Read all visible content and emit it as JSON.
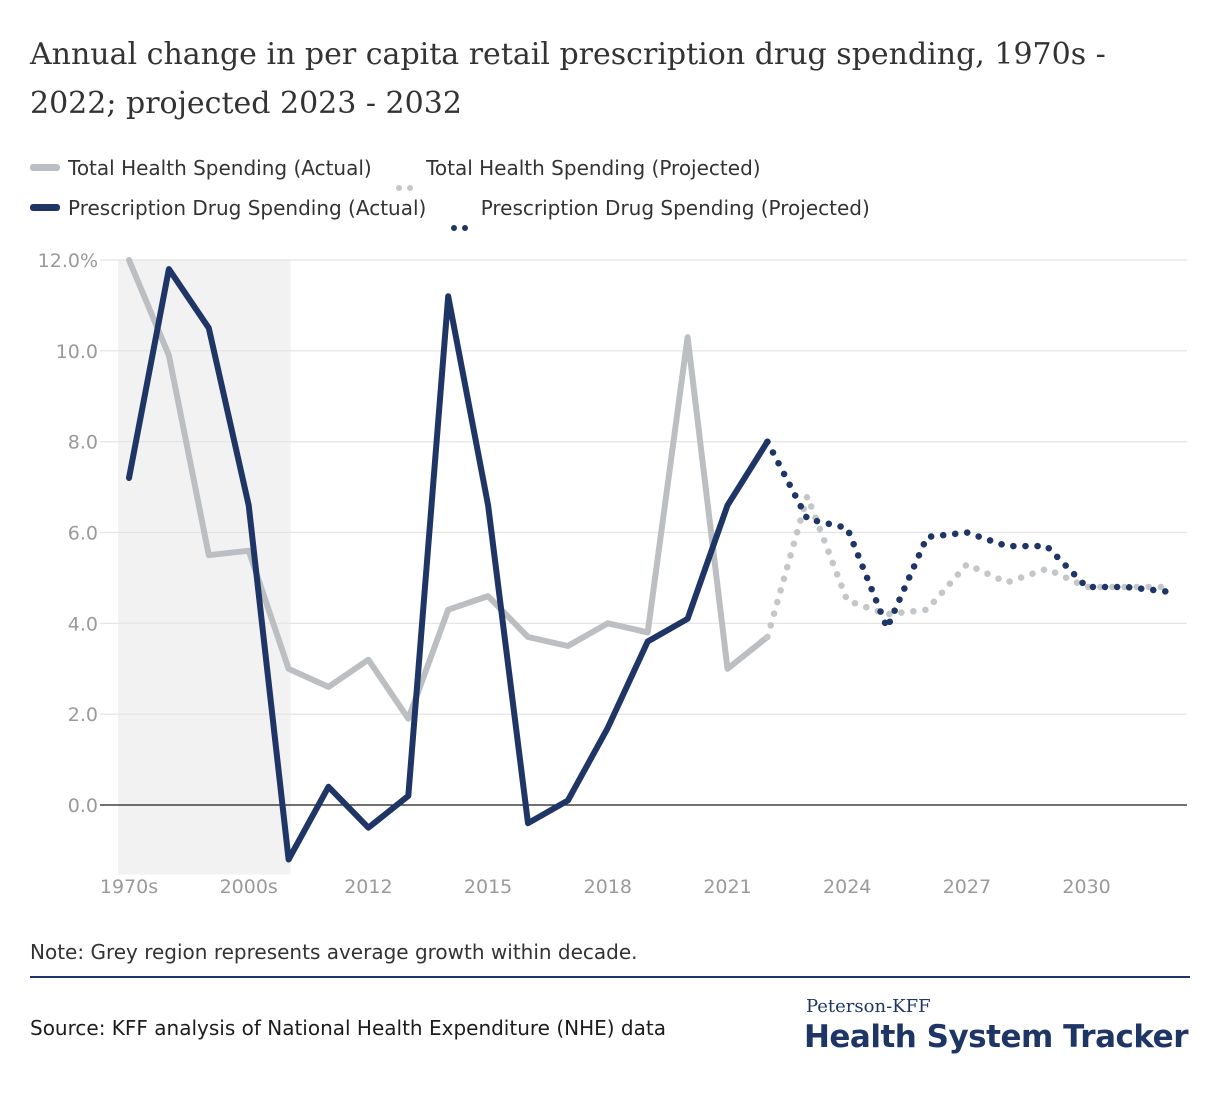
{
  "title": "Annual change in per capita retail prescription drug spending, 1970s - 2022; projected 2023 - 2032",
  "legend": [
    {
      "label": "Total Health Spending (Actual)",
      "color": "#bcbfc2",
      "style": "solid"
    },
    {
      "label": "Total Health Spending (Projected)",
      "color": "#c4c7ca",
      "style": "dotted"
    },
    {
      "label": "Prescription Drug Spending (Actual)",
      "color": "#1f3566",
      "style": "solid"
    },
    {
      "label": "Prescription Drug Spending (Projected)",
      "color": "#1f3566",
      "style": "dotted"
    }
  ],
  "note": "Note: Grey region represents average growth within decade.",
  "source": "Source: KFF analysis of National Health Expenditure (NHE) data",
  "brand": {
    "top": "Peterson-KFF",
    "main": "Health System Tracker"
  },
  "chart_data": {
    "type": "line",
    "title": "Annual change in per capita retail prescription drug spending, 1970s - 2022; projected 2023 - 2032",
    "x": [
      "1970s",
      "1980s",
      "1990s",
      "2000s",
      "2010",
      "2011",
      "2012",
      "2013",
      "2014",
      "2015",
      "2016",
      "2017",
      "2018",
      "2019",
      "2020",
      "2021",
      "2022",
      "2023",
      "2024",
      "2025",
      "2026",
      "2027",
      "2028",
      "2029",
      "2030",
      "2031",
      "2032"
    ],
    "x_tick_labels": [
      "1970s",
      "2000s",
      "2012",
      "2015",
      "2018",
      "2021",
      "2024",
      "2027",
      "2030"
    ],
    "y_ticks": [
      "12.0%",
      "10.0",
      "8.0",
      "6.0",
      "4.0",
      "2.0",
      "0.0"
    ],
    "ylim": [
      -1.2,
      12.0
    ],
    "shaded_region": {
      "from": "1970s",
      "to": "2000s",
      "meaning": "average growth within decade"
    },
    "series": [
      {
        "name": "Total Health Spending (Actual)",
        "color": "#bcbfc2",
        "style": "solid",
        "values": [
          12.0,
          9.9,
          5.5,
          5.6,
          3.0,
          2.6,
          3.2,
          1.9,
          4.3,
          4.6,
          3.7,
          3.5,
          4.0,
          3.8,
          10.3,
          3.0,
          3.7,
          null,
          null,
          null,
          null,
          null,
          null,
          null,
          null,
          null,
          null
        ]
      },
      {
        "name": "Total Health Spending (Projected)",
        "color": "#c4c7ca",
        "style": "dotted",
        "values": [
          null,
          null,
          null,
          null,
          null,
          null,
          null,
          null,
          null,
          null,
          null,
          null,
          null,
          null,
          null,
          null,
          3.7,
          6.8,
          4.5,
          4.2,
          4.3,
          5.3,
          4.9,
          5.2,
          4.8,
          4.8,
          4.8
        ]
      },
      {
        "name": "Prescription Drug Spending (Actual)",
        "color": "#1f3566",
        "style": "solid",
        "values": [
          7.2,
          11.8,
          10.5,
          6.6,
          -1.2,
          0.4,
          -0.5,
          0.2,
          11.2,
          6.6,
          -0.4,
          0.1,
          1.7,
          3.6,
          4.1,
          6.6,
          8.0,
          null,
          null,
          null,
          null,
          null,
          null,
          null,
          null,
          null,
          null
        ]
      },
      {
        "name": "Prescription Drug Spending (Projected)",
        "color": "#1f3566",
        "style": "dotted",
        "values": [
          null,
          null,
          null,
          null,
          null,
          null,
          null,
          null,
          null,
          null,
          null,
          null,
          null,
          null,
          null,
          null,
          8.0,
          6.3,
          6.1,
          3.9,
          5.9,
          6.0,
          5.7,
          5.7,
          4.8,
          4.8,
          4.7
        ]
      }
    ]
  }
}
